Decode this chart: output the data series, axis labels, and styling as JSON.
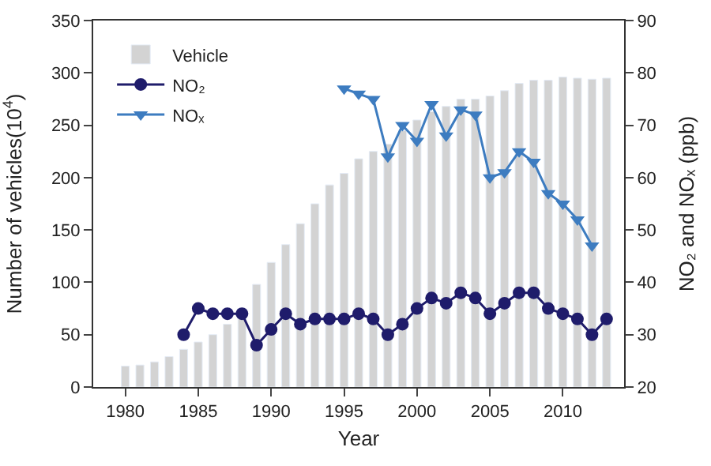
{
  "chart_data": {
    "type": "bar",
    "xlabel": "Year",
    "ylabel": "Number of vehicles(10$^{4}$)",
    "y2label": "NO₂ and NOₓ (ppb)",
    "x": [
      1980,
      1981,
      1982,
      1983,
      1984,
      1985,
      1986,
      1987,
      1988,
      1989,
      1990,
      1991,
      1992,
      1993,
      1994,
      1995,
      1996,
      1997,
      1998,
      1999,
      2000,
      2001,
      2002,
      2003,
      2004,
      2005,
      2006,
      2007,
      2008,
      2009,
      2010,
      2011,
      2012,
      2013
    ],
    "series": [
      {
        "name": "Vehicle",
        "color": "#d3d3d3",
        "values": [
          20,
          21,
          24,
          29,
          36,
          43,
          50,
          60,
          75,
          98,
          119,
          136,
          156,
          175,
          193,
          204,
          218,
          225,
          232,
          245,
          255,
          263,
          268,
          275,
          275,
          278,
          283,
          290,
          293,
          293,
          296,
          295,
          294,
          295
        ]
      },
      {
        "name": "NO₂",
        "type": "line",
        "axis": "y2",
        "color": "#1f1c6b",
        "marker": "circle",
        "x": [
          1984,
          1985,
          1986,
          1987,
          1988,
          1989,
          1990,
          1991,
          1992,
          1993,
          1994,
          1995,
          1996,
          1997,
          1998,
          1999,
          2000,
          2001,
          2002,
          2003,
          2004,
          2005,
          2006,
          2007,
          2008,
          2009,
          2010,
          2011,
          2012,
          2013
        ],
        "values": [
          30,
          35,
          34,
          34,
          34,
          28,
          31,
          34,
          32,
          33,
          33,
          33,
          34,
          33,
          30,
          32,
          35,
          37,
          36,
          38,
          37,
          34,
          36,
          38,
          38,
          35,
          34,
          33,
          30,
          33
        ]
      },
      {
        "name": "NOₓ",
        "type": "line",
        "axis": "y2",
        "color": "#3d7cc0",
        "marker": "triangle",
        "x": [
          1995,
          1996,
          1997,
          1998,
          1999,
          2000,
          2001,
          2002,
          2003,
          2004,
          2005,
          2006,
          2007,
          2008,
          2009,
          2010,
          2011,
          2012
        ],
        "values": [
          77,
          76,
          75,
          64,
          70,
          67,
          74,
          68,
          73,
          72,
          60,
          61,
          65,
          63,
          57,
          55,
          52,
          47
        ]
      }
    ],
    "xlim": [
      1977.8,
      2014.2
    ],
    "xticks": [
      1980,
      1985,
      1990,
      1995,
      2000,
      2005,
      2010
    ],
    "ylim": [
      0,
      350
    ],
    "yticks": [
      0,
      50,
      100,
      150,
      200,
      250,
      300,
      350
    ],
    "y2lim": [
      20,
      90
    ],
    "y2ticks": [
      20,
      30,
      40,
      50,
      60,
      70,
      80,
      90
    ],
    "legend": "top left"
  }
}
